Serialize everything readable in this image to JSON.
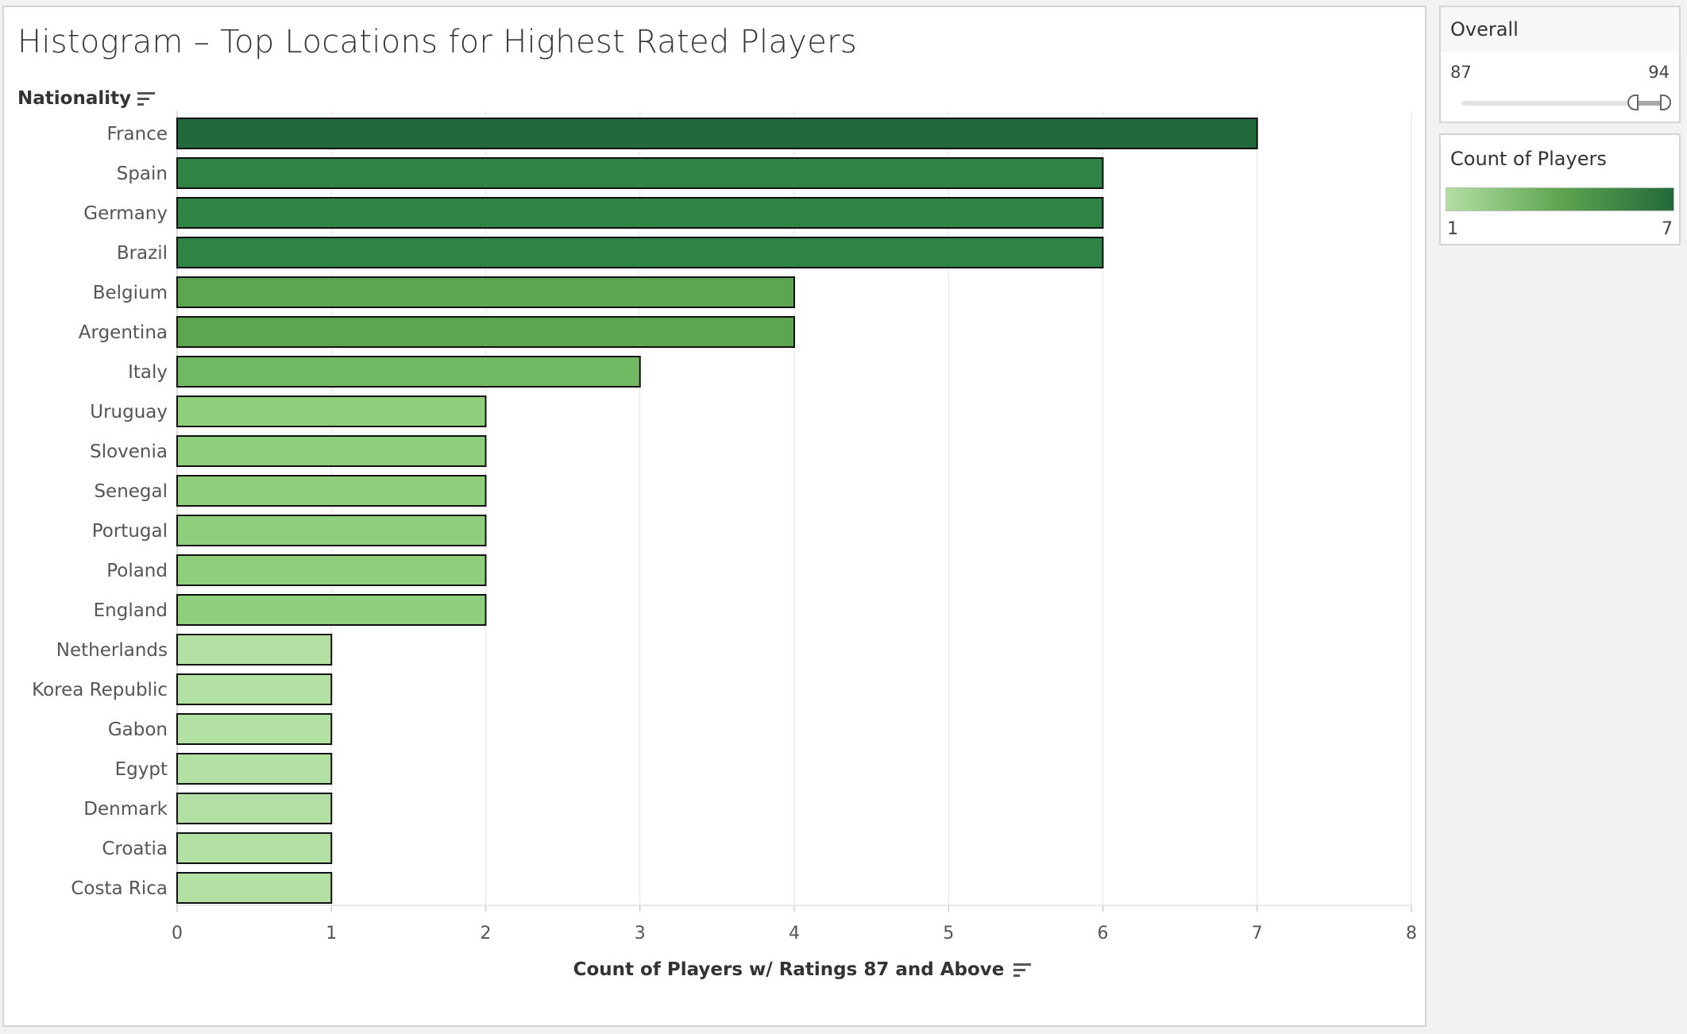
{
  "title": "Histogram – Top Locations for Highest Rated Players",
  "filter": {
    "label": "Overall",
    "range_min": "87",
    "range_max": "94",
    "selected_min": 93,
    "selected_max": 94,
    "domain_min": 87,
    "domain_max": 94
  },
  "legend": {
    "label": "Count of Players",
    "min_label": "1",
    "max_label": "7",
    "color_light": "#b3e0a3",
    "color_mid": "#5ea550",
    "color_dark": "#226a3b"
  },
  "chart_data": {
    "type": "bar",
    "orientation": "horizontal",
    "ylabel": "Nationality",
    "xlabel": "Count of Players w/ Ratings 87 and Above",
    "xlim": [
      0,
      8
    ],
    "x_ticks": [
      "0",
      "1",
      "2",
      "3",
      "4",
      "5",
      "6",
      "7",
      "8"
    ],
    "grid": true,
    "categories": [
      "France",
      "Spain",
      "Germany",
      "Brazil",
      "Belgium",
      "Argentina",
      "Italy",
      "Uruguay",
      "Slovenia",
      "Senegal",
      "Portugal",
      "Poland",
      "England",
      "Netherlands",
      "Korea Republic",
      "Gabon",
      "Egypt",
      "Denmark",
      "Croatia",
      "Costa Rica"
    ],
    "values": [
      7,
      6,
      6,
      6,
      4,
      4,
      3,
      2,
      2,
      2,
      2,
      2,
      2,
      1,
      1,
      1,
      1,
      1,
      1,
      1
    ],
    "color_scale": {
      "1": "#b3e0a3",
      "2": "#8ecf7c",
      "3": "#72b964",
      "4": "#5ea550",
      "6": "#2d8444",
      "7": "#226a3b"
    }
  }
}
